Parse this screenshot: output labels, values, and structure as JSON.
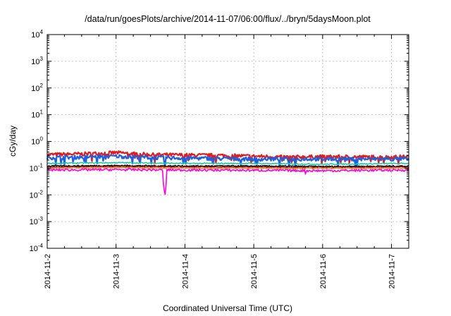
{
  "chart_data": {
    "type": "line",
    "title": "/data/run/goesPlots/archive/2014-11-07/06:00/flux/../bryn/5daysMoon.plot",
    "xlabel": "Coordinated Universal Time (UTC)",
    "ylabel": "cGy/day",
    "x_range_days": [
      "2014-11-02",
      "2014-11-07T06:00"
    ],
    "x_ticks": [
      "2014-11-2",
      "2014-11-3",
      "2014-11-4",
      "2014-11-5",
      "2014-11-6",
      "2014-11-7"
    ],
    "y_scale": "log",
    "ylim": [
      0.0001,
      10000
    ],
    "y_ticks": [
      {
        "base": "10",
        "exp": "-4",
        "value": 0.0001
      },
      {
        "base": "10",
        "exp": "-3",
        "value": 0.001
      },
      {
        "base": "10",
        "exp": "-2",
        "value": 0.01
      },
      {
        "base": "10",
        "exp": "-1",
        "value": 0.1
      },
      {
        "base": "10",
        "exp": "0",
        "value": 1
      },
      {
        "base": "10",
        "exp": "1",
        "value": 10
      },
      {
        "base": "10",
        "exp": "2",
        "value": 100
      },
      {
        "base": "10",
        "exp": "3",
        "value": 1000
      },
      {
        "base": "10",
        "exp": "4",
        "value": 10000
      }
    ],
    "grid": true,
    "series": [
      {
        "color": "#e41a1c",
        "baseline": 0.3,
        "points": [
          [
            "2014-11-02T00:00",
            0.32
          ],
          [
            "2014-11-02T12:00",
            0.34
          ],
          [
            "2014-11-03T00:00",
            0.38
          ],
          [
            "2014-11-03T12:00",
            0.32
          ],
          [
            "2014-11-04T00:00",
            0.31
          ],
          [
            "2014-11-04T12:00",
            0.3
          ],
          [
            "2014-11-05T00:00",
            0.28
          ],
          [
            "2014-11-05T12:00",
            0.26
          ],
          [
            "2014-11-06T00:00",
            0.27
          ],
          [
            "2014-11-06T12:00",
            0.25
          ],
          [
            "2014-11-07T00:00",
            0.26
          ],
          [
            "2014-11-07T06:00",
            0.27
          ]
        ]
      },
      {
        "color": "#1f5fe0",
        "baseline": 0.24,
        "points": [
          [
            "2014-11-02T00:00",
            0.25
          ],
          [
            "2014-11-02T12:00",
            0.26
          ],
          [
            "2014-11-03T00:00",
            0.28
          ],
          [
            "2014-11-03T12:00",
            0.25
          ],
          [
            "2014-11-03T17:00",
            0.08
          ],
          [
            "2014-11-04T00:00",
            0.24
          ],
          [
            "2014-11-04T12:00",
            0.23
          ],
          [
            "2014-11-05T00:00",
            0.22
          ],
          [
            "2014-11-05T12:00",
            0.18
          ],
          [
            "2014-11-06T00:00",
            0.19
          ],
          [
            "2014-11-06T12:00",
            0.17
          ],
          [
            "2014-11-07T00:00",
            0.19
          ],
          [
            "2014-11-07T06:00",
            0.2
          ]
        ]
      },
      {
        "color": "#1fc9a8",
        "baseline": 0.15,
        "points": [
          [
            "2014-11-02T00:00",
            0.15
          ],
          [
            "2014-11-03T00:00",
            0.16
          ],
          [
            "2014-11-04T00:00",
            0.15
          ],
          [
            "2014-11-05T00:00",
            0.15
          ],
          [
            "2014-11-06T00:00",
            0.14
          ],
          [
            "2014-11-07T06:00",
            0.15
          ]
        ]
      },
      {
        "color": "#000000",
        "baseline": 0.12,
        "points": [
          [
            "2014-11-02T00:00",
            0.12
          ],
          [
            "2014-11-03T00:00",
            0.125
          ],
          [
            "2014-11-04T00:00",
            0.12
          ],
          [
            "2014-11-05T00:00",
            0.12
          ],
          [
            "2014-11-06T00:00",
            0.115
          ],
          [
            "2014-11-07T06:00",
            0.12
          ]
        ]
      },
      {
        "color": "#8b1a1a",
        "baseline": 0.11,
        "points": [
          [
            "2014-11-02T00:00",
            0.11
          ],
          [
            "2014-11-03T00:00",
            0.115
          ],
          [
            "2014-11-04T00:00",
            0.11
          ],
          [
            "2014-11-05T00:00",
            0.11
          ],
          [
            "2014-11-06T00:00",
            0.105
          ],
          [
            "2014-11-07T06:00",
            0.11
          ]
        ]
      },
      {
        "color": "#f08c30",
        "baseline": 0.1,
        "points": [
          [
            "2014-11-02T00:00",
            0.1
          ],
          [
            "2014-11-03T00:00",
            0.105
          ],
          [
            "2014-11-04T00:00",
            0.1
          ],
          [
            "2014-11-05T00:00",
            0.1
          ],
          [
            "2014-11-06T00:00",
            0.098
          ],
          [
            "2014-11-07T06:00",
            0.1
          ]
        ]
      },
      {
        "color": "#ff00e0",
        "baseline": 0.085,
        "points": [
          [
            "2014-11-02T00:00",
            0.085
          ],
          [
            "2014-11-03T00:00",
            0.088
          ],
          [
            "2014-11-03T17:00",
            0.0065
          ],
          [
            "2014-11-04T00:00",
            0.085
          ],
          [
            "2014-11-05T00:00",
            0.083
          ],
          [
            "2014-11-05T05:00",
            0.065
          ],
          [
            "2014-11-05T18:00",
            0.06
          ],
          [
            "2014-11-06T00:00",
            0.08
          ],
          [
            "2014-11-07T06:00",
            0.085
          ]
        ]
      }
    ]
  }
}
